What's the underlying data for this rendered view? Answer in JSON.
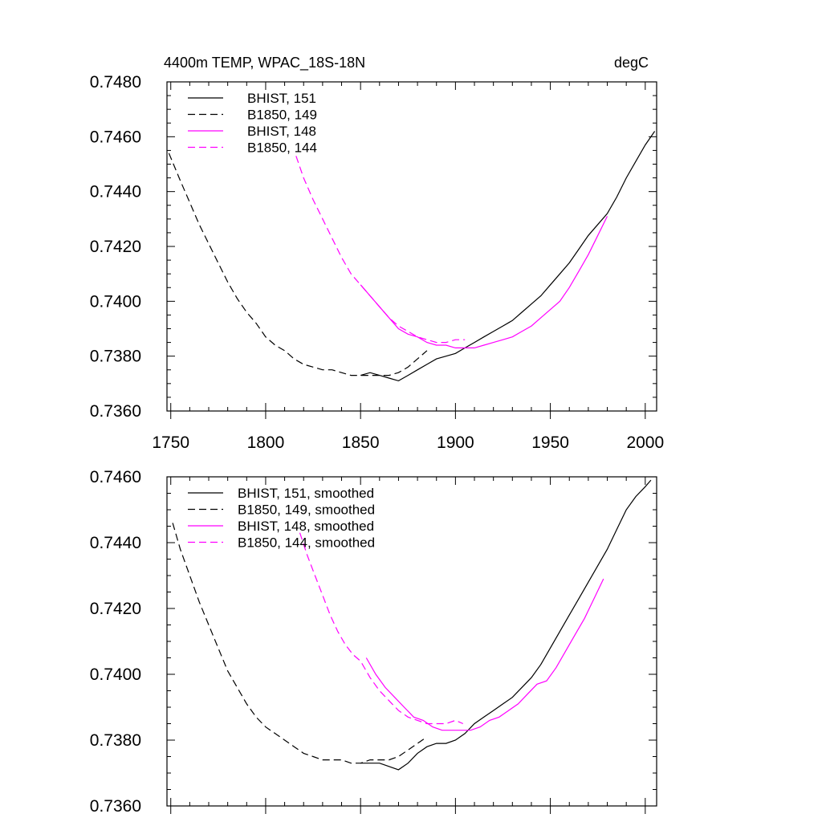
{
  "colors": {
    "black": "#000000",
    "magenta": "#ff00ff"
  },
  "chart_data": [
    {
      "type": "line",
      "title_left": "4400m TEMP, WPAC_18S-18N",
      "title_right": "degC",
      "xlim": [
        1748,
        2006
      ],
      "ylim": [
        0.736,
        0.748
      ],
      "yticks": [
        "0.7360",
        "0.7380",
        "0.7400",
        "0.7420",
        "0.7440",
        "0.7460",
        "0.7480"
      ],
      "xticks": [
        "1750",
        "1800",
        "1850",
        "1900",
        "1950",
        "2000"
      ],
      "show_x_tick_labels": true,
      "series": [
        {
          "name": "BHIST, 151",
          "color": "#000000",
          "dash": "solid",
          "x": [
            1850,
            1855,
            1860,
            1865,
            1870,
            1875,
            1880,
            1885,
            1890,
            1895,
            1900,
            1905,
            1910,
            1915,
            1920,
            1925,
            1930,
            1935,
            1940,
            1945,
            1950,
            1955,
            1960,
            1965,
            1970,
            1975,
            1980,
            1985,
            1990,
            1995,
            2000,
            2005
          ],
          "y": [
            0.7373,
            0.7374,
            0.7373,
            0.7372,
            0.7371,
            0.7373,
            0.7375,
            0.7377,
            0.7379,
            0.738,
            0.7381,
            0.7383,
            0.7385,
            0.7387,
            0.7389,
            0.7391,
            0.7393,
            0.7396,
            0.7399,
            0.7402,
            0.7406,
            0.741,
            0.7414,
            0.7419,
            0.7424,
            0.7428,
            0.7432,
            0.7438,
            0.7445,
            0.7451,
            0.7457,
            0.7462
          ]
        },
        {
          "name": "B1850, 149",
          "color": "#000000",
          "dash": "dashed",
          "x": [
            1749,
            1755,
            1760,
            1765,
            1770,
            1775,
            1780,
            1785,
            1790,
            1795,
            1800,
            1805,
            1810,
            1815,
            1820,
            1825,
            1830,
            1835,
            1840,
            1845,
            1850,
            1855,
            1860,
            1865,
            1870,
            1875,
            1880,
            1885
          ],
          "y": [
            0.7454,
            0.7444,
            0.7436,
            0.7428,
            0.7421,
            0.7414,
            0.7407,
            0.7401,
            0.7396,
            0.7392,
            0.7387,
            0.7384,
            0.7382,
            0.7379,
            0.7377,
            0.7376,
            0.7375,
            0.7375,
            0.7374,
            0.7373,
            0.7373,
            0.7373,
            0.7373,
            0.7373,
            0.7374,
            0.7376,
            0.7379,
            0.7382
          ]
        },
        {
          "name": "BHIST, 148",
          "color": "#ff00ff",
          "dash": "solid",
          "x": [
            1850,
            1855,
            1860,
            1865,
            1870,
            1875,
            1880,
            1885,
            1890,
            1895,
            1900,
            1905,
            1910,
            1915,
            1920,
            1925,
            1930,
            1935,
            1940,
            1945,
            1950,
            1955,
            1960,
            1965,
            1970,
            1975,
            1980
          ],
          "y": [
            0.7406,
            0.7402,
            0.7398,
            0.7394,
            0.739,
            0.7388,
            0.7387,
            0.7385,
            0.7384,
            0.7384,
            0.7383,
            0.7383,
            0.7383,
            0.7384,
            0.7385,
            0.7386,
            0.7387,
            0.7389,
            0.7391,
            0.7394,
            0.7397,
            0.74,
            0.7405,
            0.7411,
            0.7417,
            0.7424,
            0.7431
          ]
        },
        {
          "name": "B1850, 144",
          "color": "#ff00ff",
          "dash": "dashed",
          "x": [
            1816,
            1820,
            1825,
            1830,
            1835,
            1840,
            1845,
            1850,
            1855,
            1860,
            1865,
            1870,
            1875,
            1880,
            1885,
            1890,
            1895,
            1900,
            1905
          ],
          "y": [
            0.7453,
            0.7445,
            0.7437,
            0.743,
            0.7423,
            0.7416,
            0.741,
            0.7406,
            0.7402,
            0.7398,
            0.7394,
            0.7391,
            0.7389,
            0.7387,
            0.7386,
            0.7385,
            0.7385,
            0.7386,
            0.7386
          ]
        }
      ]
    },
    {
      "type": "line",
      "xlim": [
        1748,
        2006
      ],
      "ylim": [
        0.736,
        0.746
      ],
      "yticks": [
        "0.7360",
        "0.7380",
        "0.7400",
        "0.7420",
        "0.7440",
        "0.7460"
      ],
      "show_x_tick_labels": false,
      "series": [
        {
          "name": "BHIST, 151, smoothed",
          "color": "#000000",
          "dash": "solid",
          "x": [
            1850,
            1855,
            1860,
            1865,
            1870,
            1875,
            1880,
            1885,
            1890,
            1895,
            1900,
            1905,
            1910,
            1915,
            1920,
            1925,
            1930,
            1935,
            1940,
            1945,
            1950,
            1955,
            1960,
            1965,
            1970,
            1975,
            1980,
            1985,
            1990,
            1995,
            2000,
            2003
          ],
          "y": [
            0.7373,
            0.7373,
            0.7373,
            0.7372,
            0.7371,
            0.7373,
            0.7376,
            0.7378,
            0.7379,
            0.7379,
            0.738,
            0.7382,
            0.7385,
            0.7387,
            0.7389,
            0.7391,
            0.7393,
            0.7396,
            0.7399,
            0.7403,
            0.7408,
            0.7413,
            0.7418,
            0.7423,
            0.7428,
            0.7433,
            0.7438,
            0.7444,
            0.745,
            0.7454,
            0.7457,
            0.7459
          ]
        },
        {
          "name": "B1850, 149, smoothed",
          "color": "#000000",
          "dash": "dashed",
          "x": [
            1751,
            1755,
            1760,
            1765,
            1770,
            1775,
            1780,
            1785,
            1790,
            1795,
            1800,
            1805,
            1810,
            1815,
            1820,
            1825,
            1830,
            1835,
            1840,
            1845,
            1850,
            1855,
            1860,
            1865,
            1870,
            1875,
            1880,
            1885
          ],
          "y": [
            0.7446,
            0.7438,
            0.743,
            0.7422,
            0.7415,
            0.7408,
            0.7401,
            0.7396,
            0.7391,
            0.7387,
            0.7384,
            0.7382,
            0.738,
            0.7378,
            0.7376,
            0.7375,
            0.7374,
            0.7374,
            0.7374,
            0.7373,
            0.7373,
            0.7374,
            0.7374,
            0.7374,
            0.7375,
            0.7377,
            0.7379,
            0.7381
          ]
        },
        {
          "name": "BHIST, 148, smoothed",
          "color": "#ff00ff",
          "dash": "solid",
          "x": [
            1853,
            1858,
            1863,
            1868,
            1873,
            1878,
            1883,
            1888,
            1893,
            1898,
            1903,
            1908,
            1913,
            1918,
            1923,
            1928,
            1933,
            1938,
            1943,
            1948,
            1953,
            1958,
            1963,
            1968,
            1973,
            1978
          ],
          "y": [
            0.7405,
            0.74,
            0.7396,
            0.7393,
            0.739,
            0.7387,
            0.7386,
            0.7384,
            0.7383,
            0.7383,
            0.7383,
            0.7383,
            0.7384,
            0.7386,
            0.7387,
            0.7389,
            0.7391,
            0.7394,
            0.7397,
            0.7398,
            0.7402,
            0.7407,
            0.7412,
            0.7417,
            0.7423,
            0.7429
          ]
        },
        {
          "name": "B1850, 144, smoothed",
          "color": "#ff00ff",
          "dash": "dashed",
          "x": [
            1818,
            1822,
            1826,
            1830,
            1834,
            1838,
            1842,
            1846,
            1850,
            1855,
            1860,
            1865,
            1870,
            1875,
            1880,
            1885,
            1890,
            1895,
            1900,
            1904
          ],
          "y": [
            0.7443,
            0.7436,
            0.743,
            0.7424,
            0.7418,
            0.7413,
            0.7409,
            0.7406,
            0.7404,
            0.7399,
            0.7395,
            0.7392,
            0.7389,
            0.7387,
            0.7386,
            0.7385,
            0.7385,
            0.7385,
            0.7386,
            0.7385
          ]
        }
      ]
    }
  ]
}
